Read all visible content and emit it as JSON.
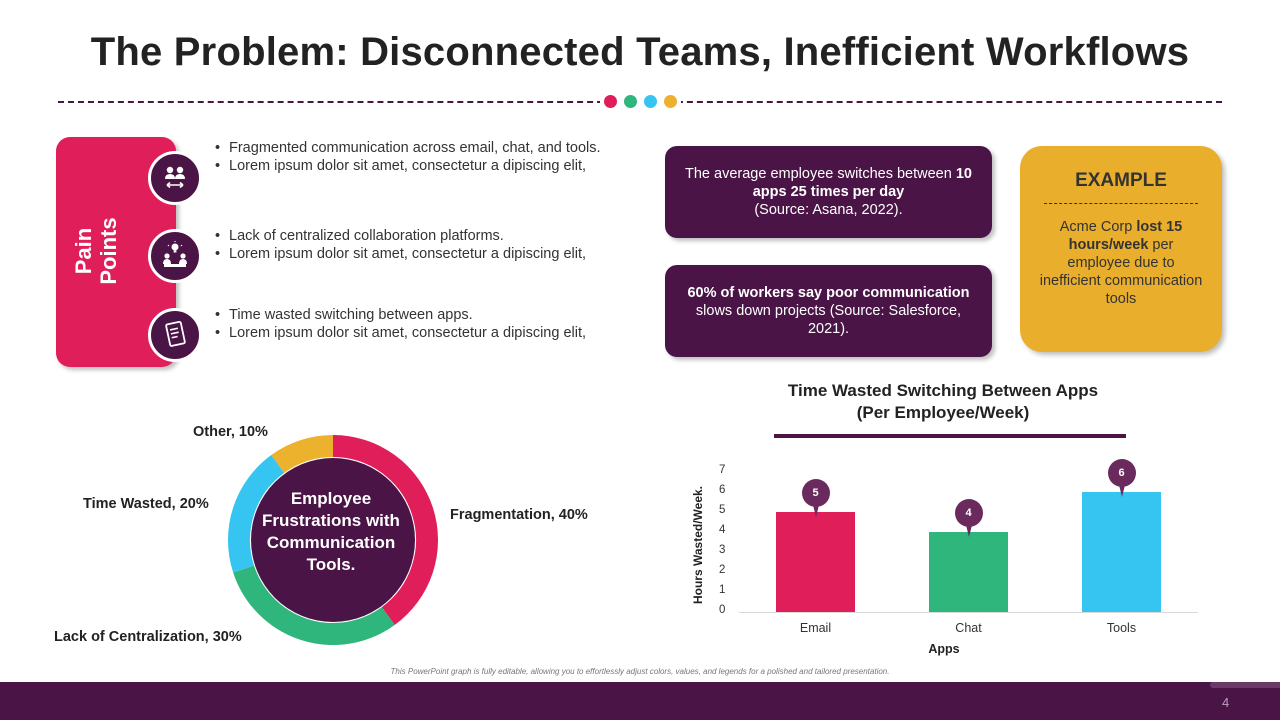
{
  "title": "The Problem: Disconnected Teams, Inefficient Workflows",
  "colors": {
    "purple": "#4a1546",
    "magenta": "#e01e5a",
    "green": "#2eb67d",
    "blue": "#36c5f0",
    "yellow": "#ecb22e"
  },
  "pain_points": {
    "label_line1": "Pain",
    "label_line2": "Points",
    "items": [
      {
        "icon": "team-exchange-icon",
        "bullet1": "Fragmented communication across email, chat, and tools.",
        "bullet2": "Lorem ipsum dolor sit amet, consectetur a  dipiscing elit,"
      },
      {
        "icon": "meeting-idea-icon",
        "bullet1": "Lack of centralized collaboration platforms.",
        "bullet2": "Lorem ipsum dolor sit amet, consectetur a  dipiscing elit,"
      },
      {
        "icon": "document-list-icon",
        "bullet1": "Time wasted switching between apps.",
        "bullet2": "Lorem ipsum dolor sit amet, consectetur a  dipiscing elit,"
      }
    ]
  },
  "stats": {
    "stat1_pre": "The average employee switches between ",
    "stat1_bold": "10 apps 25 times per day",
    "stat1_post": "(Source: Asana, 2022).",
    "stat2_bold": "60% of workers say poor communication",
    "stat2_post": " slows down projects (Source: Salesforce, 2021)."
  },
  "example": {
    "title": "EXAMPLE",
    "pre": "Acme Corp ",
    "bold": "lost 15 hours/week",
    "post": " per employee due to inefficient communication tools"
  },
  "donut": {
    "center_text": "Employee Frustrations with Communication Tools.",
    "labels": {
      "other": "Other, 10%",
      "time_wasted": "Time Wasted, 20%",
      "fragmentation": "Fragmentation, 40%",
      "centralization": "Lack of Centralization, 30%"
    }
  },
  "footnote": "This PowerPoint graph is fully editable, allowing you to effortlessly adjust colors, values, and legends for a polished and tailored presentation.",
  "page_number": "4",
  "chart_data": [
    {
      "type": "pie",
      "title": "Employee Frustrations with Communication Tools.",
      "categories": [
        "Fragmentation",
        "Lack of Centralization",
        "Time Wasted",
        "Other"
      ],
      "values": [
        40,
        30,
        20,
        10
      ],
      "colors": [
        "#e01e5a",
        "#2eb67d",
        "#36c5f0",
        "#ecb22e"
      ]
    },
    {
      "type": "bar",
      "title": "Time Wasted Switching Between Apps",
      "subtitle": "(Per Employee/Week)",
      "categories": [
        "Email",
        "Chat",
        "Tools"
      ],
      "values": [
        5,
        4,
        6
      ],
      "colors": [
        "#e01e5a",
        "#2eb67d",
        "#36c5f0"
      ],
      "xlabel": "Apps",
      "ylabel": "Hours Wasted/Week.",
      "ylim": [
        0,
        7
      ],
      "yticks": [
        "0",
        "1",
        "2",
        "3",
        "4",
        "5",
        "6",
        "7"
      ],
      "grid": false
    }
  ]
}
